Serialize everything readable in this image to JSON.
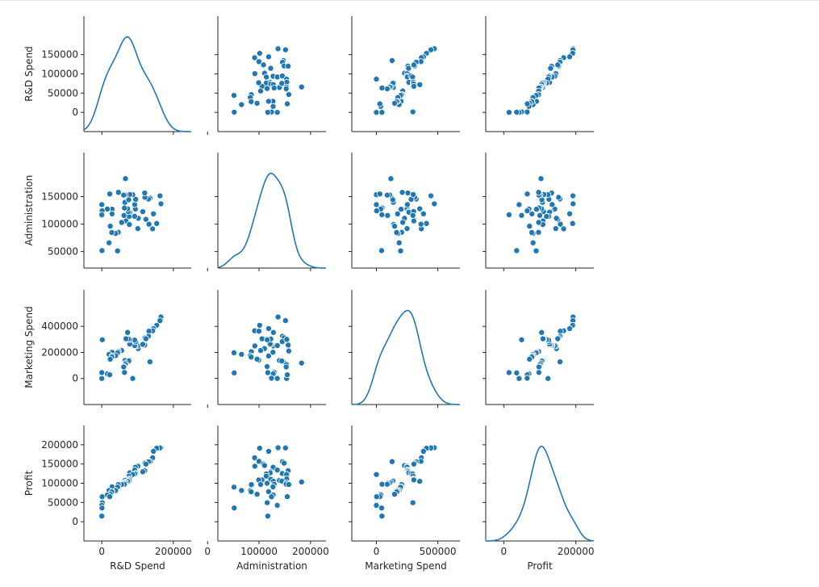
{
  "chart_data": {
    "type": "scatter",
    "title": "",
    "variables": [
      "R&D Spend",
      "Administration",
      "Marketing Spend",
      "Profit"
    ],
    "axis_labels": {
      "R&D Spend": "R&D Spend",
      "Administration": "Administration",
      "Marketing Spend": "Marketing Spend",
      "Profit": "Profit"
    },
    "ranges": {
      "R&D Spend": [
        -50000,
        250000
      ],
      "Administration": [
        20000,
        230000
      ],
      "Marketing Spend": [
        -200000,
        680000
      ],
      "Profit": [
        -50000,
        250000
      ]
    },
    "y_ticks": {
      "R&D Spend": [
        0,
        50000,
        100000,
        150000
      ],
      "Administration": [
        50000,
        100000,
        150000
      ],
      "Marketing Spend": [
        0,
        200000,
        400000
      ],
      "Profit": [
        0,
        50000,
        100000,
        150000,
        200000
      ]
    },
    "x_ticks": {
      "R&D Spend": [
        0,
        200000
      ],
      "Administration": [
        0,
        100000,
        200000
      ],
      "Marketing Spend": [
        0,
        500000
      ],
      "Profit": [
        0,
        200000
      ]
    },
    "kde_peak_height": 0.82,
    "series_color": "#1f77b4",
    "marker_edge_color": "#ffffff",
    "diagonal": "kde",
    "columns": {
      "R&D Spend": [
        165349,
        162597,
        153441,
        144372,
        142107,
        131877,
        134615,
        130298,
        120542,
        123334,
        101913,
        100671,
        93864,
        91992,
        119943,
        114523,
        78013,
        94657,
        91749,
        86419,
        76254,
        78389,
        73994,
        67532,
        77044,
        64665,
        75328,
        72107,
        66051,
        65605,
        61994,
        61136,
        63409,
        55494,
        46426,
        46014,
        28664,
        44070,
        20230,
        38558,
        28754,
        27893,
        23641,
        15506,
        22178,
        1001,
        1315,
        0,
        542,
        0
      ],
      "Administration": [
        136898,
        151378,
        101146,
        118672,
        91392,
        99815,
        147199,
        145530,
        148719,
        108679,
        110594,
        91791,
        127320,
        135495,
        156547,
        122617,
        121598,
        145077,
        114176,
        153514,
        113867,
        153773,
        122783,
        105751,
        99281,
        139553,
        144136,
        127865,
        182646,
        153032,
        115642,
        152702,
        129220,
        103057,
        157694,
        85047,
        127056,
        51283,
        65947,
        82982,
        118546,
        84711,
        96189,
        127382,
        154806,
        124153,
        115816,
        135427,
        51743,
        116984
      ],
      "Marketing Spend": [
        471784,
        443899,
        407934,
        383200,
        366168,
        362861,
        127717,
        323877,
        311613,
        304982,
        229161,
        249745,
        249839,
        252665,
        256513,
        261776,
        264346,
        282574,
        294920,
        0,
        298664,
        299737,
        303319,
        304769,
        140575,
        137963,
        134051,
        353184,
        118148,
        107138,
        91131,
        88219,
        46085,
        214635,
        210798,
        205518,
        201127,
        197029,
        185265,
        174999,
        172795,
        164471,
        148001,
        35534,
        28334,
        1904,
        297114,
        0,
        42665,
        45173
      ],
      "Profit": [
        192262,
        191792,
        191050,
        182902,
        166188,
        156991,
        156123,
        155753,
        152212,
        149760,
        146122,
        144259,
        141586,
        134307,
        132602,
        129917,
        126993,
        125371,
        124267,
        122777,
        118474,
        111314,
        110352,
        108734,
        108552,
        107404,
        105734,
        105008,
        103282,
        101004,
        99938,
        97484,
        97427,
        96779,
        96712,
        96479,
        90708,
        89949,
        81230,
        81006,
        78240,
        77799,
        71498,
        69759,
        65200,
        64927,
        49491,
        42560,
        35673,
        14681
      ]
    }
  }
}
